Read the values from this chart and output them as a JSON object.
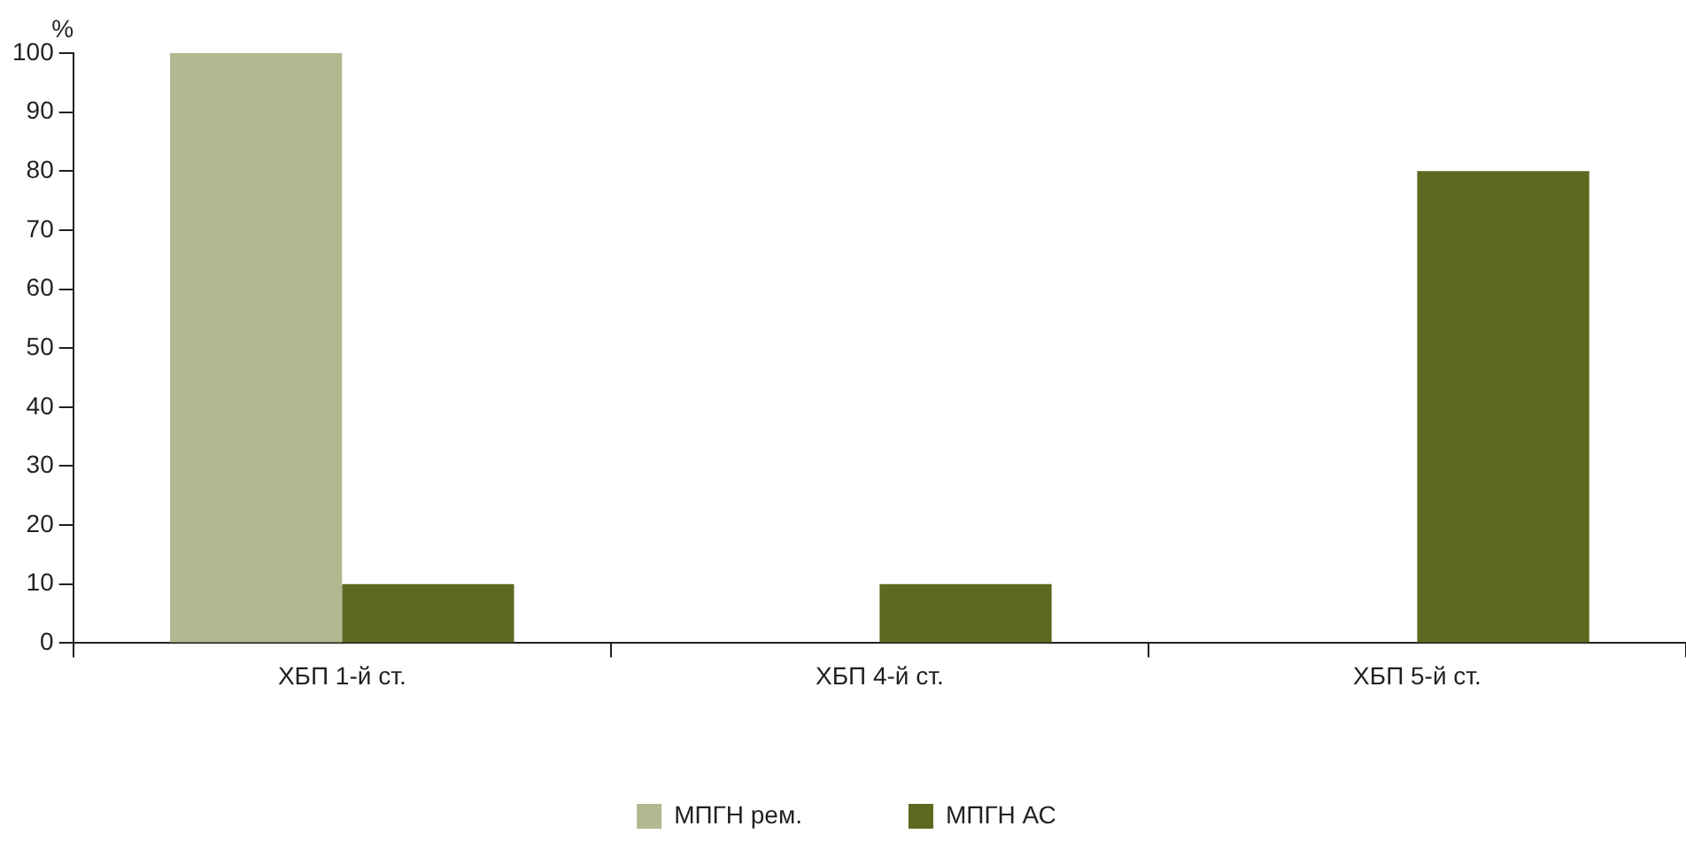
{
  "chart_data": {
    "type": "bar",
    "ylabel": "%",
    "categories": [
      "ХБП 1-й ст.",
      "ХБП 4-й ст.",
      "ХБП 5-й ст."
    ],
    "series": [
      {
        "name": "МПГН рем.",
        "color": "#b2b88f",
        "values": [
          100,
          0,
          0
        ]
      },
      {
        "name": "МПГН АС",
        "color": "#5b6a1f",
        "values": [
          10,
          10,
          80
        ]
      }
    ],
    "ylim": [
      0,
      100
    ],
    "yticks": [
      0,
      10,
      20,
      30,
      40,
      50,
      60,
      70,
      80,
      90,
      100
    ],
    "grid": false,
    "legend": "bottom"
  }
}
